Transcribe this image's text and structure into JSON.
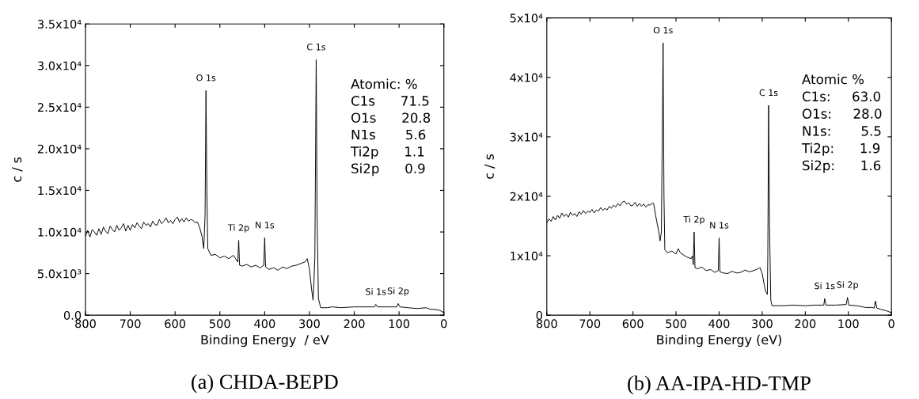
{
  "chart_data": [
    {
      "type": "line",
      "title": "(a) CHDA-BEPD",
      "xlabel": "Binding Energy  / eV",
      "ylabel": "c / s",
      "xlim": [
        800,
        0
      ],
      "xticks": [
        800,
        700,
        600,
        500,
        400,
        300,
        200,
        100,
        0
      ],
      "ylim": [
        0,
        35000
      ],
      "yticks": [
        {
          "value": 0,
          "label": "0.0"
        },
        {
          "value": 5000,
          "label": "5.0x10³"
        },
        {
          "value": 10000,
          "label": "1.0x10⁴"
        },
        {
          "value": 15000,
          "label": "1.5x10⁴"
        },
        {
          "value": 20000,
          "label": "2.0x10⁴"
        },
        {
          "value": 25000,
          "label": "2.5x10⁴"
        },
        {
          "value": 30000,
          "label": "3.0x10⁴"
        },
        {
          "value": 35000,
          "label": "3.5x10⁴"
        }
      ],
      "grid": false,
      "legend": false,
      "marker": "none",
      "line_style": "solid",
      "series": [
        {
          "color": "#000000",
          "x": [
            800,
            795,
            790,
            785,
            780,
            775,
            770,
            765,
            760,
            755,
            750,
            745,
            740,
            735,
            730,
            725,
            720,
            715,
            710,
            705,
            700,
            695,
            690,
            685,
            680,
            675,
            670,
            665,
            660,
            655,
            650,
            645,
            640,
            635,
            630,
            625,
            620,
            615,
            610,
            605,
            600,
            595,
            590,
            585,
            580,
            575,
            570,
            565,
            560,
            555,
            550,
            545,
            540,
            536,
            533,
            531,
            529,
            527,
            520,
            510,
            500,
            490,
            480,
            470,
            465,
            460,
            458,
            456,
            450,
            440,
            430,
            420,
            410,
            402,
            400,
            398,
            390,
            380,
            370,
            360,
            350,
            340,
            330,
            320,
            310,
            305,
            300,
            295,
            292,
            290,
            288,
            285,
            283,
            280,
            275,
            260,
            250,
            230,
            200,
            180,
            160,
            155,
            152,
            148,
            130,
            120,
            105,
            102,
            98,
            80,
            60,
            40,
            30,
            20,
            10,
            0
          ],
          "values": [
            9500,
            10200,
            9400,
            10300,
            10000,
            9600,
            10400,
            9700,
            10600,
            10100,
            9800,
            10700,
            10300,
            10000,
            10800,
            10200,
            10500,
            11000,
            10100,
            10800,
            10200,
            10900,
            10500,
            11100,
            10700,
            10400,
            11200,
            10800,
            11000,
            10600,
            11300,
            10900,
            10800,
            11500,
            11000,
            11300,
            11700,
            11100,
            11400,
            11000,
            11500,
            11800,
            11200,
            11600,
            11200,
            11700,
            11300,
            11500,
            11400,
            11100,
            11200,
            10500,
            9500,
            8000,
            12000,
            27000,
            15000,
            8000,
            7200,
            7300,
            6900,
            7100,
            6800,
            7200,
            6800,
            6400,
            9000,
            6000,
            5900,
            6100,
            5800,
            6000,
            5700,
            6000,
            9300,
            5800,
            5500,
            5700,
            5400,
            5800,
            5600,
            5900,
            6000,
            6200,
            6400,
            6800,
            5500,
            3000,
            1800,
            4000,
            7000,
            30700,
            12000,
            2000,
            900,
            900,
            1000,
            900,
            1000,
            1000,
            1000,
            1000,
            1300,
            1000,
            1000,
            1000,
            1000,
            1400,
            1000,
            900,
            800,
            900,
            700,
            700,
            600,
            300
          ]
        }
      ],
      "annotations": [
        {
          "text": "O 1s",
          "x": 531,
          "y": 27000
        },
        {
          "text": "C 1s",
          "x": 285,
          "y": 30700
        },
        {
          "text": "Ti 2p",
          "x": 458,
          "y": 9000
        },
        {
          "text": "N 1s",
          "x": 400,
          "y": 9300
        },
        {
          "text": "Si 1s",
          "x": 152,
          "y": 1300
        },
        {
          "text": "Si 2p",
          "x": 102,
          "y": 1400
        },
        "Atomic: %",
        "C1s      71.5",
        "O1s      20.8",
        "N1s       5.6",
        "Ti2p      1.1",
        "Si2p      0.9"
      ]
    },
    {
      "type": "line",
      "title": "(b) AA-IPA-HD-TMP",
      "xlabel": "Binding Energy (eV)",
      "ylabel": "c / s",
      "xlim": [
        800,
        0
      ],
      "xticks": [
        800,
        700,
        600,
        500,
        400,
        300,
        200,
        100,
        0
      ],
      "ylim": [
        0,
        50000
      ],
      "yticks": [
        0,
        {
          "value": 10000,
          "label": "1x10⁴"
        },
        {
          "value": 20000,
          "label": "2x10⁴"
        },
        {
          "value": 30000,
          "label": "3x10⁴"
        },
        {
          "value": 40000,
          "label": "4x10⁴"
        },
        {
          "value": 50000,
          "label": "5x10⁴"
        }
      ],
      "grid": false,
      "legend": false,
      "marker": "none",
      "line_style": "solid",
      "series": [
        {
          "color": "#000000",
          "x": [
            800,
            795,
            790,
            785,
            780,
            775,
            770,
            765,
            760,
            755,
            750,
            745,
            740,
            735,
            730,
            725,
            720,
            715,
            710,
            705,
            700,
            695,
            690,
            685,
            680,
            675,
            670,
            665,
            660,
            655,
            650,
            645,
            640,
            635,
            630,
            625,
            620,
            615,
            610,
            605,
            600,
            595,
            590,
            585,
            580,
            575,
            570,
            565,
            560,
            555,
            552,
            548,
            544,
            540,
            537,
            534,
            532,
            530,
            528,
            526,
            520,
            510,
            500,
            495,
            490,
            480,
            475,
            465,
            462,
            460,
            458,
            456,
            450,
            440,
            430,
            420,
            410,
            402,
            400,
            398,
            390,
            380,
            370,
            360,
            350,
            340,
            330,
            320,
            310,
            305,
            300,
            295,
            292,
            288,
            287,
            285,
            283,
            280,
            277,
            260,
            250,
            230,
            200,
            180,
            160,
            157,
            155,
            152,
            130,
            105,
            102,
            99,
            80,
            60,
            45,
            40,
            37,
            34,
            25,
            10,
            0
          ],
          "values": [
            15500,
            16200,
            15800,
            16600,
            16000,
            16800,
            16300,
            17200,
            16600,
            17000,
            16500,
            17300,
            16800,
            17100,
            16600,
            17400,
            17000,
            17600,
            17100,
            17500,
            17300,
            17800,
            17200,
            17700,
            17500,
            18100,
            17600,
            18000,
            17700,
            18300,
            18000,
            18500,
            18200,
            18800,
            18400,
            19000,
            19200,
            18700,
            18900,
            18400,
            18500,
            19000,
            18300,
            18800,
            18300,
            18700,
            18200,
            18600,
            18500,
            18900,
            18800,
            17000,
            15500,
            14000,
            12500,
            14000,
            30000,
            45800,
            20000,
            11000,
            10500,
            10800,
            10300,
            11200,
            10500,
            10000,
            9800,
            9500,
            10000,
            8500,
            14000,
            8000,
            7800,
            8100,
            7500,
            7700,
            7200,
            7500,
            13000,
            7300,
            7100,
            7000,
            7400,
            7100,
            7200,
            7600,
            7300,
            7500,
            7800,
            8000,
            7000,
            5000,
            4000,
            3500,
            10000,
            35300,
            15000,
            2500,
            1600,
            1600,
            1600,
            1700,
            1600,
            1700,
            1700,
            1700,
            2800,
            1700,
            1700,
            1800,
            3000,
            1700,
            1600,
            1300,
            1300,
            1200,
            2400,
            1200,
            1000,
            700,
            400
          ]
        }
      ],
      "annotations": [
        {
          "text": "O 1s",
          "x": 530,
          "y": 45800
        },
        {
          "text": "C 1s",
          "x": 285,
          "y": 35300
        },
        {
          "text": "Ti 2p",
          "x": 458,
          "y": 14000
        },
        {
          "text": "N 1s",
          "x": 400,
          "y": 13000
        },
        {
          "text": "Si 1s",
          "x": 155,
          "y": 2800
        },
        {
          "text": "Si 2p",
          "x": 102,
          "y": 3000
        },
        "Atomic %",
        "C1s:     63.0",
        "O1s:     28.0",
        "N1s:       5.5",
        "Ti2p:      1.9",
        "Si2p:      1.6"
      ]
    }
  ]
}
